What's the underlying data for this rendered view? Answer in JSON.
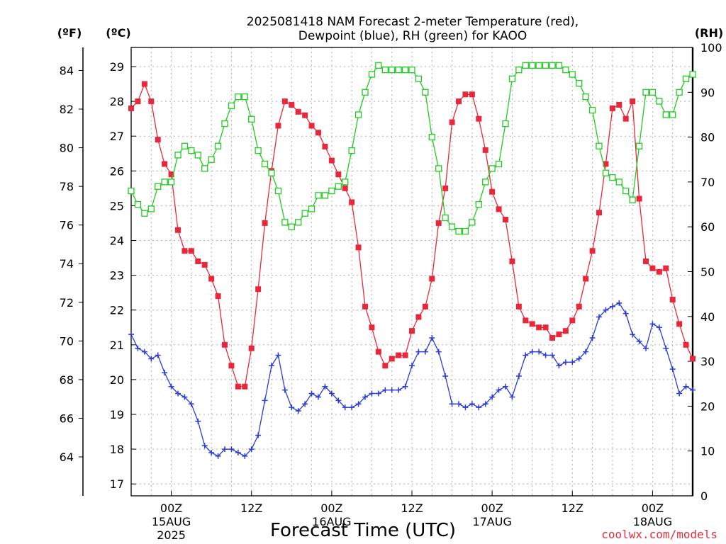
{
  "chart_data": {
    "type": "line",
    "title_line1": "2025081418 NAM Forecast 2-meter Temperature (red),",
    "title_line2": "Dewpoint (blue), RH (green) for KAOO",
    "xlabel": "Forecast Time (UTC)",
    "credit": "coolwx.com/models",
    "units": {
      "left_outer": "(ºF)",
      "left_inner": "(ºC)",
      "right": "(RH)"
    },
    "x_unit": "forecast hour",
    "xlim": [
      0,
      84
    ],
    "ylim_c": [
      16.7,
      29.3
    ],
    "ylim_rh": [
      0,
      100
    ],
    "f_ticks": [
      "64",
      "66",
      "68",
      "70",
      "72",
      "74",
      "76",
      "78",
      "80",
      "82",
      "84"
    ],
    "c_ticks": [
      "17",
      "18",
      "19",
      "20",
      "21",
      "22",
      "23",
      "24",
      "25",
      "26",
      "27",
      "28",
      "29"
    ],
    "rh_ticks": [
      "0",
      "10",
      "20",
      "30",
      "40",
      "50",
      "60",
      "70",
      "80",
      "90",
      "100"
    ],
    "x_ticks": [
      {
        "hour": 6,
        "label": "00Z",
        "date": "15AUG",
        "year": "2025"
      },
      {
        "hour": 18,
        "label": "12Z",
        "date": "",
        "year": ""
      },
      {
        "hour": 30,
        "label": "00Z",
        "date": "16AUG",
        "year": ""
      },
      {
        "hour": 42,
        "label": "12Z",
        "date": "",
        "year": ""
      },
      {
        "hour": 54,
        "label": "00Z",
        "date": "17AUG",
        "year": ""
      },
      {
        "hour": 66,
        "label": "12Z",
        "date": "",
        "year": ""
      },
      {
        "hour": 78,
        "label": "00Z",
        "date": "18AUG",
        "year": ""
      }
    ],
    "series": [
      {
        "name": "Temperature",
        "axis": "c",
        "color": "#e8283a",
        "marker": "filled-square",
        "values": [
          27.8,
          28.0,
          28.5,
          28.0,
          26.9,
          26.2,
          25.9,
          24.3,
          23.7,
          23.7,
          23.4,
          23.3,
          22.9,
          22.4,
          21.0,
          20.4,
          19.8,
          19.8,
          20.9,
          22.6,
          24.5,
          26.0,
          27.3,
          28.0,
          27.9,
          27.7,
          27.6,
          27.3,
          27.1,
          26.7,
          26.3,
          25.9,
          25.5,
          25.1,
          23.8,
          22.1,
          21.5,
          20.8,
          20.4,
          20.6,
          20.7,
          20.7,
          21.4,
          21.8,
          22.1,
          22.9,
          24.5,
          25.5,
          27.4,
          28.0,
          28.2,
          28.2,
          27.5,
          26.6,
          25.4,
          24.9,
          24.6,
          23.4,
          22.1,
          21.7,
          21.6,
          21.5,
          21.5,
          21.2,
          21.3,
          21.4,
          21.7,
          22.1,
          22.9,
          23.7,
          24.8,
          26.2,
          27.8,
          27.9,
          27.5,
          28.0,
          25.2,
          23.4,
          23.2,
          23.1,
          23.2,
          22.3,
          21.6,
          21.0,
          20.6
        ]
      },
      {
        "name": "Dewpoint",
        "axis": "c",
        "color": "#2a3bd8",
        "marker": "plus",
        "values": [
          21.3,
          20.9,
          20.8,
          20.6,
          20.7,
          20.2,
          19.8,
          19.6,
          19.5,
          19.3,
          18.8,
          18.1,
          17.9,
          17.8,
          18.0,
          18.0,
          17.9,
          17.8,
          18.0,
          18.4,
          19.4,
          20.4,
          20.7,
          19.7,
          19.2,
          19.1,
          19.3,
          19.6,
          19.5,
          19.8,
          19.6,
          19.4,
          19.2,
          19.2,
          19.3,
          19.5,
          19.6,
          19.6,
          19.7,
          19.7,
          19.7,
          19.8,
          20.4,
          20.8,
          20.8,
          21.2,
          20.8,
          20.1,
          19.3,
          19.3,
          19.2,
          19.3,
          19.2,
          19.3,
          19.5,
          19.7,
          19.8,
          19.5,
          20.1,
          20.7,
          20.8,
          20.8,
          20.7,
          20.7,
          20.4,
          20.5,
          20.5,
          20.6,
          20.8,
          21.2,
          21.8,
          22.0,
          22.1,
          22.2,
          21.9,
          21.3,
          21.1,
          20.9,
          21.6,
          21.5,
          20.9,
          20.3,
          19.6,
          19.8,
          19.7
        ]
      },
      {
        "name": "RH",
        "axis": "rh",
        "color": "#1fcc1f",
        "marker": "open-square",
        "values": [
          68,
          65,
          63,
          64,
          69,
          70,
          70,
          76,
          78,
          77,
          76,
          73,
          75,
          78,
          83,
          87,
          89,
          89,
          84,
          77,
          74,
          72,
          68,
          61,
          60,
          61,
          63,
          64,
          67,
          67,
          68,
          69,
          70,
          77,
          85,
          90,
          94,
          96,
          95,
          95,
          95,
          95,
          95,
          93,
          90,
          80,
          73,
          62,
          60,
          59,
          59,
          61,
          65,
          70,
          73,
          74,
          83,
          93,
          95,
          96,
          96,
          96,
          96,
          96,
          96,
          95,
          94,
          92,
          89,
          86,
          78,
          72,
          71,
          70,
          68,
          66,
          78,
          90,
          90,
          88,
          85,
          85,
          90,
          93,
          94
        ]
      }
    ]
  }
}
